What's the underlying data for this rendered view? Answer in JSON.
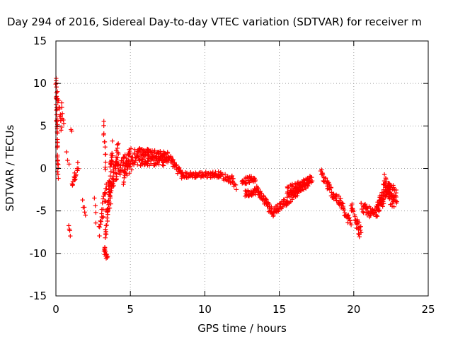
{
  "chart_data": {
    "type": "scatter",
    "title": "Day 294 of 2016, Sidereal Day-to-day VTEC variation (SDTVAR) for receiver m",
    "xlabel": "GPS time / hours",
    "ylabel": "SDTVAR / TECUs",
    "xlim": [
      0,
      25
    ],
    "ylim": [
      -15,
      15
    ],
    "xticks": [
      0,
      5,
      10,
      15,
      20,
      25
    ],
    "yticks": [
      -15,
      -10,
      -5,
      0,
      5,
      10,
      15
    ],
    "xtick_labels": [
      "0",
      "5",
      "10",
      "15",
      "20",
      "25"
    ],
    "ytick_labels": [
      "-15",
      "-10",
      "-5",
      "0",
      "5",
      "10",
      "15"
    ],
    "grid": true,
    "marker": "+",
    "colors": {
      "points": "#ff0000",
      "frame": "#000000",
      "grid": "#a0a0a0"
    },
    "series": [
      {
        "name": "SDTVAR",
        "segments": [
          {
            "x": [
              0.0,
              0.15
            ],
            "y": [
              10.5,
              -1.0
            ],
            "n": 40,
            "noise": 0.4
          },
          {
            "x": [
              0.1,
              0.4
            ],
            "y": [
              8.5,
              4.5
            ],
            "n": 14,
            "noise": 0.6
          },
          {
            "x": [
              0.4,
              0.5
            ],
            "y": [
              7.5,
              5.0
            ],
            "n": 6,
            "noise": 0.3
          },
          {
            "x": [
              0.7,
              0.9
            ],
            "y": [
              1.8,
              0.5
            ],
            "n": 3,
            "noise": 0.2
          },
          {
            "x": [
              0.85,
              0.95
            ],
            "y": [
              -6.8,
              -7.8
            ],
            "n": 4,
            "noise": 0.2
          },
          {
            "x": [
              1.0,
              1.05
            ],
            "y": [
              4.6,
              4.4
            ],
            "n": 2,
            "noise": 0.05
          },
          {
            "x": [
              1.1,
              1.5
            ],
            "y": [
              -2.0,
              0.3
            ],
            "n": 18,
            "noise": 0.5
          },
          {
            "x": [
              1.8,
              2.0
            ],
            "y": [
              -4.0,
              -5.7
            ],
            "n": 5,
            "noise": 0.3
          },
          {
            "x": [
              2.6,
              2.7
            ],
            "y": [
              -3.5,
              -6.2
            ],
            "n": 4,
            "noise": 0.3
          },
          {
            "x": [
              2.9,
              3.4
            ],
            "y": [
              -7.0,
              -2.5
            ],
            "n": 25,
            "noise": 1.0
          },
          {
            "x": [
              3.2,
              3.35
            ],
            "y": [
              5.2,
              0.0
            ],
            "n": 12,
            "noise": 0.4
          },
          {
            "x": [
              3.25,
              3.45
            ],
            "y": [
              -9.5,
              -10.6
            ],
            "n": 14,
            "noise": 0.4
          },
          {
            "x": [
              3.3,
              3.8
            ],
            "y": [
              -8.5,
              2.5
            ],
            "n": 55,
            "noise": 1.3
          },
          {
            "x": [
              3.6,
              4.2
            ],
            "y": [
              -4.0,
              3.0
            ],
            "n": 45,
            "noise": 1.2
          },
          {
            "x": [
              4.0,
              5.0
            ],
            "y": [
              -0.5,
              1.5
            ],
            "n": 50,
            "noise": 0.9
          },
          {
            "x": [
              4.5,
              5.5
            ],
            "y": [
              -1.0,
              2.0
            ],
            "n": 45,
            "noise": 0.9
          },
          {
            "x": [
              5.5,
              7.5
            ],
            "y": [
              2.0,
              1.5
            ],
            "n": 80,
            "noise": 0.5
          },
          {
            "x": [
              5.5,
              7.5
            ],
            "y": [
              0.8,
              0.8
            ],
            "n": 60,
            "noise": 0.5
          },
          {
            "x": [
              7.5,
              8.5
            ],
            "y": [
              1.5,
              -0.8
            ],
            "n": 40,
            "noise": 0.5
          },
          {
            "x": [
              8.5,
              11.0
            ],
            "y": [
              -0.8,
              -0.7
            ],
            "n": 80,
            "noise": 0.35
          },
          {
            "x": [
              11.0,
              12.0
            ],
            "y": [
              -0.8,
              -1.5
            ],
            "n": 25,
            "noise": 0.4
          },
          {
            "x": [
              11.8,
              12.1
            ],
            "y": [
              -0.8,
              -2.5
            ],
            "n": 6,
            "noise": 0.3
          },
          {
            "x": [
              12.5,
              13.4
            ],
            "y": [
              -1.5,
              -1.2
            ],
            "n": 35,
            "noise": 0.4
          },
          {
            "x": [
              12.7,
              13.5
            ],
            "y": [
              -3.0,
              -2.6
            ],
            "n": 30,
            "noise": 0.4
          },
          {
            "x": [
              13.5,
              14.5
            ],
            "y": [
              -2.5,
              -5.0
            ],
            "n": 45,
            "noise": 0.5
          },
          {
            "x": [
              14.5,
              15.5
            ],
            "y": [
              -5.2,
              -3.8
            ],
            "n": 40,
            "noise": 0.5
          },
          {
            "x": [
              15.5,
              16.3
            ],
            "y": [
              -3.8,
              -2.6
            ],
            "n": 30,
            "noise": 0.5
          },
          {
            "x": [
              15.5,
              16.3
            ],
            "y": [
              -2.6,
              -2.0
            ],
            "n": 30,
            "noise": 0.5
          },
          {
            "x": [
              16.3,
              17.2
            ],
            "y": [
              -2.0,
              -1.2
            ],
            "n": 35,
            "noise": 0.4
          },
          {
            "x": [
              16.0,
              17.0
            ],
            "y": [
              -3.0,
              -1.8
            ],
            "n": 30,
            "noise": 0.4
          },
          {
            "x": [
              17.8,
              18.4
            ],
            "y": [
              -0.5,
              -2.5
            ],
            "n": 25,
            "noise": 0.6
          },
          {
            "x": [
              18.4,
              19.3
            ],
            "y": [
              -2.5,
              -4.5
            ],
            "n": 35,
            "noise": 0.6
          },
          {
            "x": [
              19.3,
              19.8
            ],
            "y": [
              -5.0,
              -6.5
            ],
            "n": 20,
            "noise": 0.5
          },
          {
            "x": [
              19.8,
              20.5
            ],
            "y": [
              -4.5,
              -7.0
            ],
            "n": 25,
            "noise": 0.7
          },
          {
            "x": [
              20.2,
              20.4
            ],
            "y": [
              -7.0,
              -8.0
            ],
            "n": 6,
            "noise": 0.3
          },
          {
            "x": [
              20.5,
              21.4
            ],
            "y": [
              -4.5,
              -5.5
            ],
            "n": 35,
            "noise": 0.6
          },
          {
            "x": [
              21.4,
              22.0
            ],
            "y": [
              -5.5,
              -3.0
            ],
            "n": 30,
            "noise": 0.7
          },
          {
            "x": [
              21.6,
              22.4
            ],
            "y": [
              -5.0,
              -2.0
            ],
            "n": 35,
            "noise": 0.8
          },
          {
            "x": [
              22.0,
              22.7
            ],
            "y": [
              -1.0,
              -4.5
            ],
            "n": 35,
            "noise": 0.9
          },
          {
            "x": [
              22.3,
              22.9
            ],
            "y": [
              -2.0,
              -3.5
            ],
            "n": 30,
            "noise": 0.8
          }
        ]
      }
    ]
  }
}
